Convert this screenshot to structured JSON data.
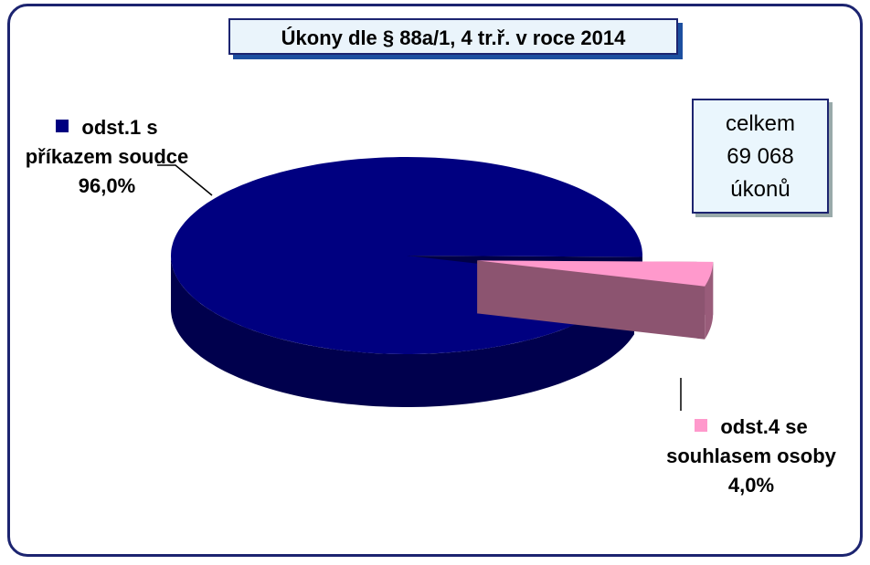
{
  "chart_data": {
    "type": "pie",
    "title": "Úkony dle § 88a/1, 4 tr.ř. v roce 2014",
    "categories": [
      "odst.1 s příkazem soudce",
      "odst.4 se souhlasem osoby"
    ],
    "values": [
      96.0,
      4.0
    ],
    "value_labels": [
      "96,0%",
      "4,0%"
    ],
    "colors": [
      "#000080",
      "#ff99cc"
    ],
    "annotation": [
      "celkem",
      "69 068",
      "úkonů"
    ]
  }
}
